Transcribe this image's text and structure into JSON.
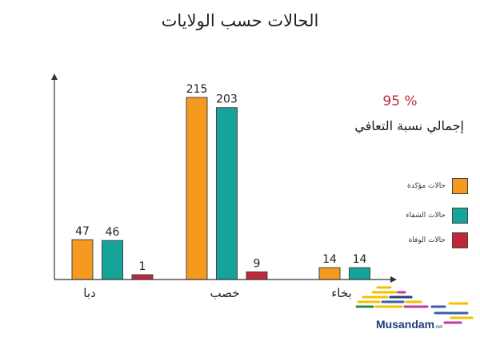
{
  "title": "الحالات حسب الولايات",
  "stat": {
    "value": "95 %",
    "label": "إجمالي نسبة التعافي"
  },
  "colors": {
    "confirmed": "#f59a1f",
    "recovered": "#16a39a",
    "deaths": "#c0283a"
  },
  "legend": [
    {
      "label": "حالات مؤكدة",
      "color": "#f59a1f"
    },
    {
      "label": "حالات الشفاء",
      "color": "#16a39a"
    },
    {
      "label": "حالات الوفاة",
      "color": "#c0283a"
    }
  ],
  "logo": {
    "text": "Musandam",
    "suffix": ".net"
  },
  "chart_data": {
    "type": "bar",
    "categories": [
      "دبا",
      "خصب",
      "بخاء"
    ],
    "series": [
      {
        "name": "حالات مؤكدة",
        "values": [
          47,
          215,
          14
        ]
      },
      {
        "name": "حالات الشفاء",
        "values": [
          46,
          203,
          14
        ]
      },
      {
        "name": "حالات الوفاة",
        "values": [
          1,
          9,
          null
        ]
      }
    ],
    "data_labels": [
      [
        "47",
        "46",
        "1"
      ],
      [
        "215",
        "203",
        "9"
      ],
      [
        "14",
        "14",
        ""
      ]
    ],
    "ylim": [
      0,
      230
    ],
    "grid": false,
    "legend_position": "right"
  }
}
